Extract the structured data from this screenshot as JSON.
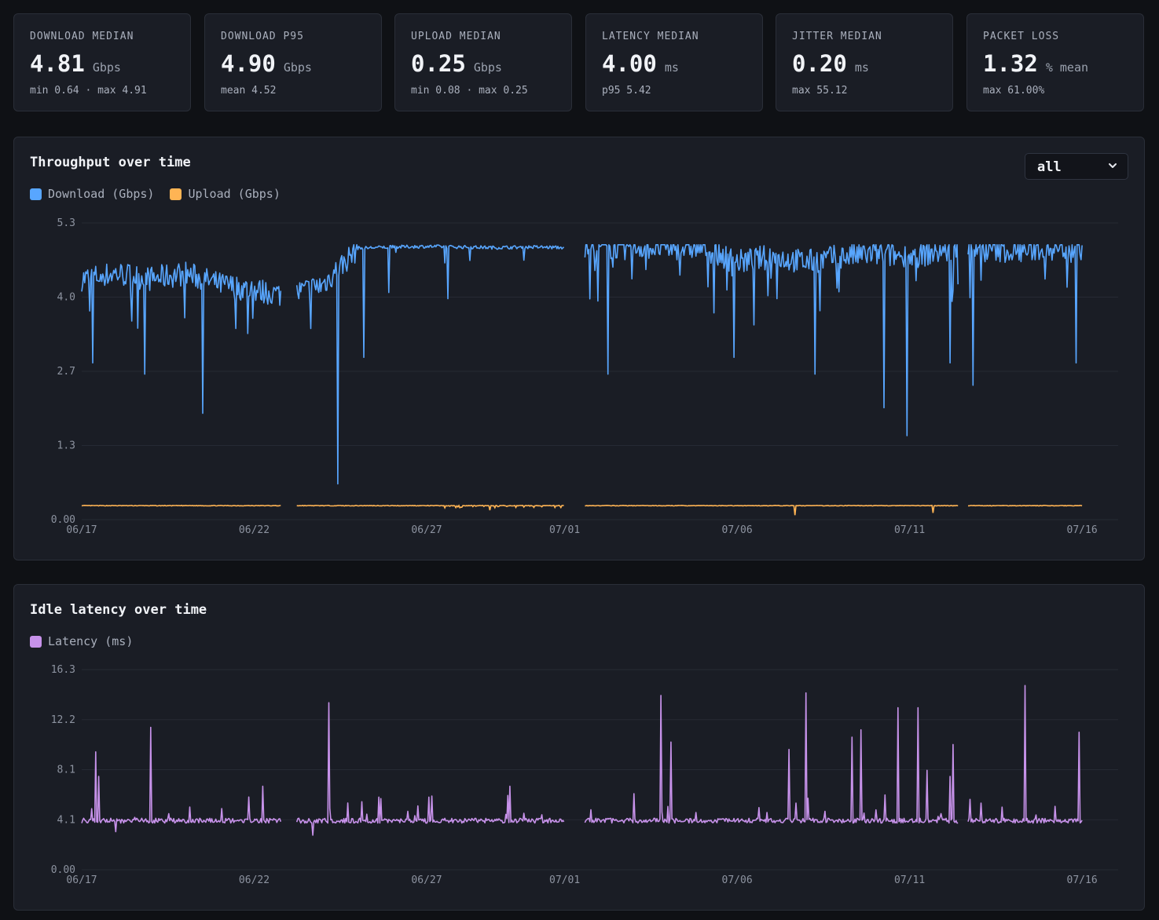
{
  "stats": [
    {
      "label": "DOWNLOAD MEDIAN",
      "value": "4.81",
      "unit": "Gbps",
      "sub": "min 0.64 · max 4.91"
    },
    {
      "label": "DOWNLOAD P95",
      "value": "4.90",
      "unit": "Gbps",
      "sub": "mean 4.52"
    },
    {
      "label": "UPLOAD MEDIAN",
      "value": "0.25",
      "unit": "Gbps",
      "sub": "min 0.08 · max 0.25"
    },
    {
      "label": "LATENCY MEDIAN",
      "value": "4.00",
      "unit": "ms",
      "sub": "p95 5.42"
    },
    {
      "label": "JITTER MEDIAN",
      "value": "0.20",
      "unit": "ms",
      "sub": "max 55.12"
    },
    {
      "label": "PACKET LOSS",
      "value": "1.32",
      "unit": "% mean",
      "sub": "max 61.00%"
    }
  ],
  "throughput": {
    "title": "Throughput over time",
    "range_select": {
      "value": "all"
    },
    "legend": [
      {
        "label": "Download (Gbps)",
        "color": "#58a6ff"
      },
      {
        "label": "Upload (Gbps)",
        "color": "#ffb454"
      }
    ]
  },
  "latency": {
    "title": "Idle latency over time",
    "legend": [
      {
        "label": "Latency (ms)",
        "color": "#c792ea"
      }
    ]
  },
  "chart_data": [
    {
      "type": "line",
      "title": "Throughput over time",
      "x_range": [
        "06/17",
        "07/16"
      ],
      "x_ticks": [
        "06/17",
        "06/22",
        "06/27",
        "07/01",
        "07/06",
        "07/11",
        "07/16"
      ],
      "y_ticks": [
        "0.00",
        "1.3",
        "2.7",
        "4.0",
        "5.3"
      ],
      "ylim": [
        0,
        5.3
      ],
      "grid": true,
      "legend_position": "top-left",
      "gaps": [
        [
          "06/22 19:00",
          "06/23 05:00"
        ],
        [
          "07/01 00:00",
          "07/01 14:00"
        ],
        [
          "07/12 10:00",
          "07/12 16:00"
        ]
      ],
      "series": [
        {
          "name": "Download (Gbps)",
          "color": "#58a6ff",
          "x": [
            "06/17",
            "06/18",
            "06/19",
            "06/20",
            "06/21",
            "06/22",
            "06/23",
            "06/24",
            "06/25",
            "06/26",
            "06/27",
            "06/28",
            "06/29",
            "06/30",
            "07/01",
            "07/02",
            "07/03",
            "07/04",
            "07/05",
            "07/06",
            "07/07",
            "07/08",
            "07/09",
            "07/10",
            "07/11",
            "07/12",
            "07/13",
            "07/14",
            "07/15",
            "07/16"
          ],
          "values": [
            4.3,
            4.4,
            4.3,
            4.4,
            4.2,
            4.1,
            4.0,
            4.2,
            4.85,
            4.87,
            4.88,
            4.87,
            4.86,
            4.87,
            4.86,
            4.87,
            4.88,
            4.86,
            4.87,
            4.6,
            4.7,
            4.6,
            4.7,
            4.75,
            4.7,
            4.8,
            4.85,
            4.8,
            4.85,
            4.86
          ],
          "dips": [
            [
              "06/17 08:00",
              2.8
            ],
            [
              "06/18 20:00",
              2.6
            ],
            [
              "06/20 12:00",
              1.9
            ],
            [
              "06/24 10:00",
              0.64
            ],
            [
              "06/25 04:00",
              2.9
            ],
            [
              "07/02 06:00",
              2.6
            ],
            [
              "07/05 22:00",
              2.9
            ],
            [
              "07/08 06:00",
              2.6
            ],
            [
              "07/10 06:00",
              2.0
            ],
            [
              "07/10 22:00",
              1.5
            ],
            [
              "07/12 04:00",
              2.8
            ],
            [
              "07/12 20:00",
              2.4
            ],
            [
              "07/15 20:00",
              2.8
            ]
          ]
        },
        {
          "name": "Upload (Gbps)",
          "color": "#ffb454",
          "x": [
            "06/17",
            "07/16"
          ],
          "values": [
            0.25,
            0.25
          ],
          "dips": [
            [
              "06/28 20:00",
              0.17
            ],
            [
              "07/07 16:00",
              0.08
            ],
            [
              "07/11 16:00",
              0.12
            ],
            [
              "07/12 16:00",
              0.16
            ]
          ]
        }
      ]
    },
    {
      "type": "line",
      "title": "Idle latency over time",
      "x_range": [
        "06/17",
        "07/16"
      ],
      "x_ticks": [
        "06/17",
        "06/22",
        "06/27",
        "07/01",
        "07/06",
        "07/11",
        "07/16"
      ],
      "y_ticks": [
        "0.00",
        "4.1",
        "8.1",
        "12.2",
        "16.3"
      ],
      "ylim": [
        0,
        16.3
      ],
      "grid": true,
      "legend_position": "top-left",
      "series": [
        {
          "name": "Latency (ms)",
          "color": "#c792ea",
          "baseline": 4.0,
          "spikes": [
            [
              "06/17 10:00",
              9.6
            ],
            [
              "06/17 12:00",
              7.6
            ],
            [
              "06/19 00:00",
              11.6
            ],
            [
              "06/22 06:00",
              6.8
            ],
            [
              "06/23 02:00",
              7.8
            ],
            [
              "06/24 04:00",
              13.6
            ],
            [
              "06/26 18:00",
              5.2
            ],
            [
              "06/29 10:00",
              6.8
            ],
            [
              "07/03 00:00",
              6.2
            ],
            [
              "07/03 19:00",
              14.2
            ],
            [
              "07/04 02:00",
              10.4
            ],
            [
              "07/07 12:00",
              9.8
            ],
            [
              "07/08 00:00",
              14.4
            ],
            [
              "07/09 08:00",
              10.8
            ],
            [
              "07/09 14:00",
              11.4
            ],
            [
              "07/10 16:00",
              13.2
            ],
            [
              "07/11 06:00",
              13.2
            ],
            [
              "07/11 12:00",
              8.1
            ],
            [
              "07/12 04:00",
              7.6
            ],
            [
              "07/12 06:00",
              10.2
            ],
            [
              "07/14 08:00",
              15.0
            ],
            [
              "07/15 22:00",
              11.2
            ],
            [
              "07/16 14:00",
              8.9
            ]
          ]
        }
      ]
    }
  ]
}
